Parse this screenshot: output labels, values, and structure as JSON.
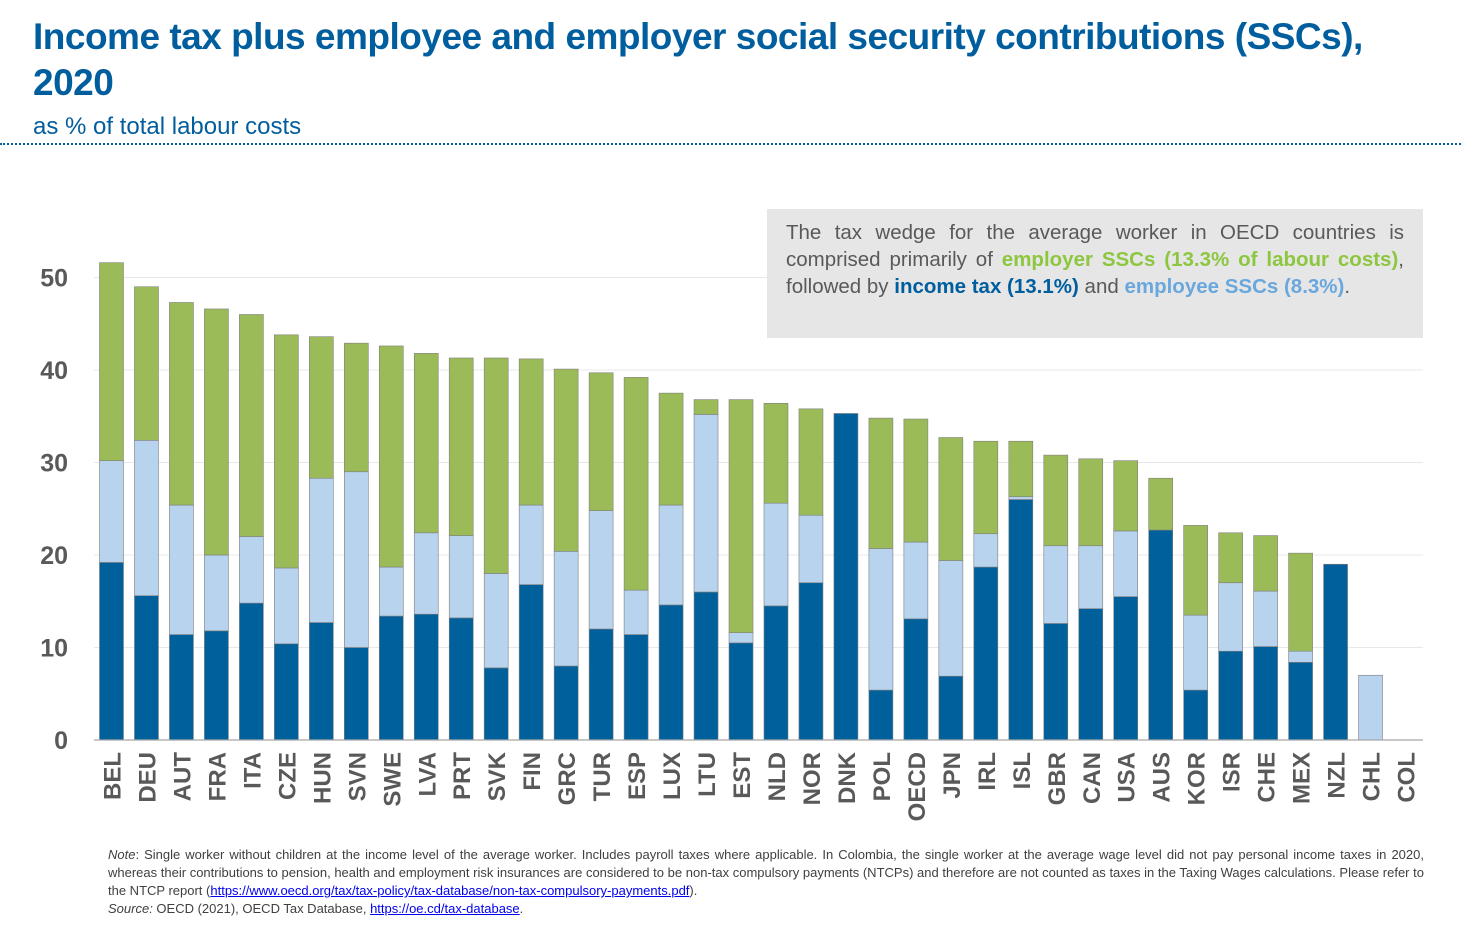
{
  "header": {
    "title": "Income tax plus employee and employer social security contributions (SSCs), 2020",
    "subtitle": "as % of total labour costs"
  },
  "callout": {
    "t1": "The tax wedge for the average worker in OECD countries is comprised primarily of ",
    "employer": "employer SSCs (13.3% of labour costs)",
    "t2": ", followed by ",
    "income": "income tax (13.1%)",
    "t3": " and ",
    "employee": "employee SSCs (8.3%)",
    "t4": "."
  },
  "note": {
    "label": "Note",
    "text": ": Single worker without children at the income level of the average worker. Includes payroll taxes where applicable. In Colombia, the single worker at the average wage level did not pay personal income taxes in 2020, whereas their contributions to pension, health and employment risk insurances are considered to be non-tax compulsory payments (NTCPs) and therefore are not counted as taxes in the Taxing Wages calculations. Please refer to the NTCP report (",
    "link": "https://www.oecd.org/tax/tax-policy/tax-database/non-tax-compulsory-payments.pdf",
    "text_end": ").",
    "source_label": "Source:",
    "source_text": " OECD (2021), OECD Tax Database, ",
    "source_link": "https://oe.cd/tax-database",
    "source_end": "."
  },
  "chart_data": {
    "type": "bar",
    "stacked": true,
    "categories": [
      "BEL",
      "DEU",
      "AUT",
      "FRA",
      "ITA",
      "CZE",
      "HUN",
      "SVN",
      "SWE",
      "LVA",
      "PRT",
      "SVK",
      "FIN",
      "GRC",
      "TUR",
      "ESP",
      "LUX",
      "LTU",
      "EST",
      "NLD",
      "NOR",
      "DNK",
      "POL",
      "OECD",
      "JPN",
      "IRL",
      "ISL",
      "GBR",
      "CAN",
      "USA",
      "AUS",
      "KOR",
      "ISR",
      "CHE",
      "MEX",
      "NZL",
      "CHL",
      "COL"
    ],
    "series": [
      {
        "values": [
          19.2,
          15.6,
          11.4,
          11.8,
          14.8,
          10.4,
          12.7,
          10.0,
          13.4,
          13.6,
          13.2,
          7.8,
          16.8,
          8.0,
          12.0,
          11.4,
          14.6,
          16.0,
          10.5,
          14.5,
          17.0,
          35.3,
          5.4,
          13.1,
          6.9,
          18.7,
          26.0,
          12.6,
          14.2,
          15.5,
          22.7,
          5.4,
          9.6,
          10.1,
          8.4,
          19.0,
          0.0,
          0.0
        ],
        "color": "#00609c"
      },
      {
        "values": [
          11.0,
          16.8,
          14.0,
          8.2,
          7.2,
          8.2,
          15.6,
          19.0,
          5.3,
          8.8,
          8.9,
          10.2,
          8.6,
          12.4,
          12.8,
          4.8,
          10.8,
          19.2,
          1.1,
          11.1,
          7.3,
          0.0,
          15.3,
          8.3,
          12.5,
          3.6,
          0.3,
          8.4,
          6.8,
          7.1,
          0.0,
          8.1,
          7.4,
          6.0,
          1.2,
          0.0,
          7.0,
          0.0
        ],
        "color": "#b8d3ee"
      },
      {
        "values": [
          21.4,
          16.6,
          21.9,
          26.6,
          24.0,
          25.2,
          15.3,
          13.9,
          23.9,
          19.4,
          19.2,
          23.3,
          15.8,
          19.7,
          14.9,
          23.0,
          12.1,
          1.6,
          25.2,
          10.8,
          11.5,
          0.0,
          14.1,
          13.3,
          13.3,
          10.0,
          6.0,
          9.8,
          9.4,
          7.6,
          5.6,
          9.7,
          5.4,
          6.0,
          10.6,
          0.0,
          0.0,
          0.0
        ],
        "color": "#9bbb59"
      }
    ],
    "yticks": [
      0,
      10,
      20,
      30,
      40,
      50
    ],
    "ylim": [
      0,
      52
    ]
  }
}
